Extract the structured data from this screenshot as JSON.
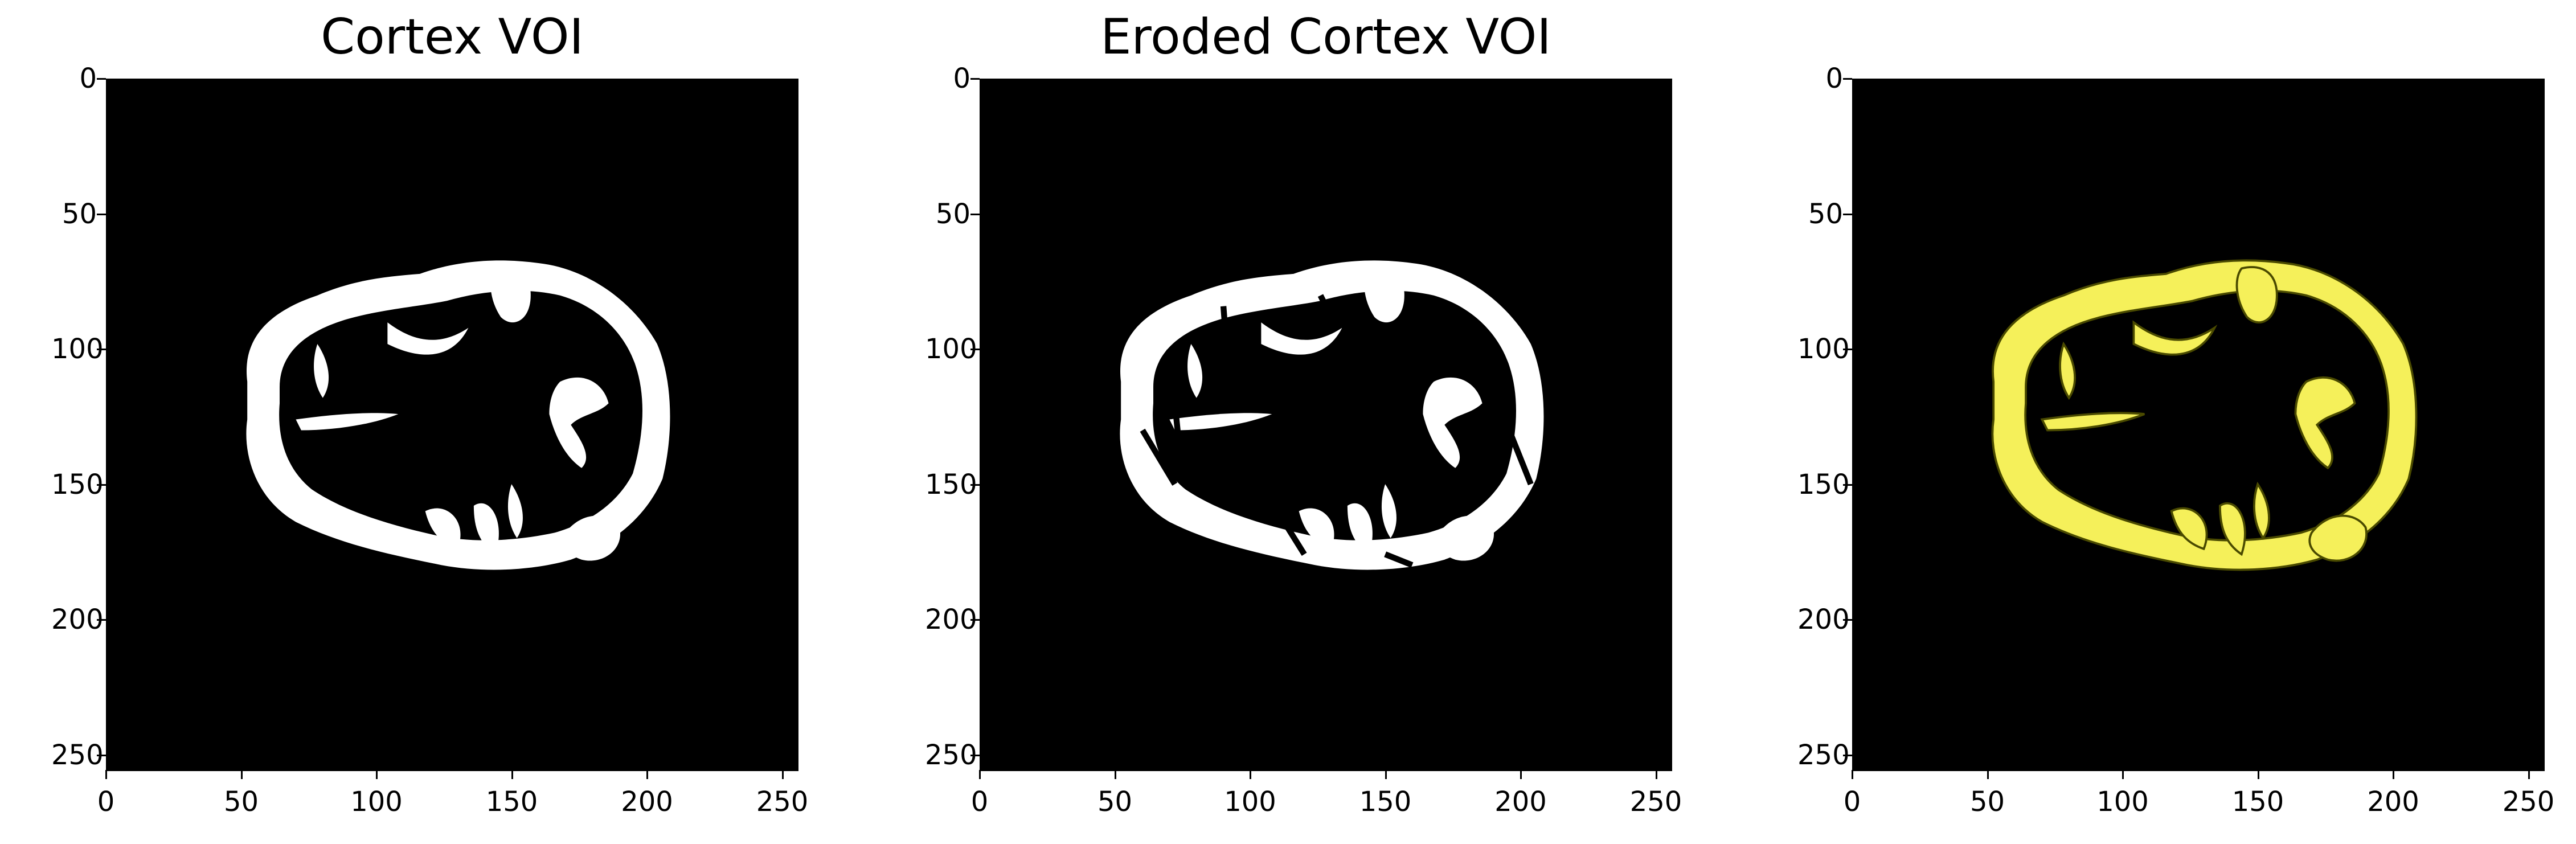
{
  "panels": [
    {
      "title": "Cortex VOI",
      "mask_color": "#ffffff",
      "edge_color": null
    },
    {
      "title": "Eroded Cortex VOI",
      "mask_color": "#ffffff",
      "edge_color": null
    },
    {
      "title": "",
      "mask_color": "#f5f05a",
      "edge_color": "#4a4a00"
    }
  ],
  "axes": {
    "x_ticks": [
      "0",
      "50",
      "100",
      "150",
      "200",
      "250"
    ],
    "y_ticks": [
      "0",
      "50",
      "100",
      "150",
      "200",
      "250"
    ],
    "range": [
      0,
      256
    ]
  }
}
